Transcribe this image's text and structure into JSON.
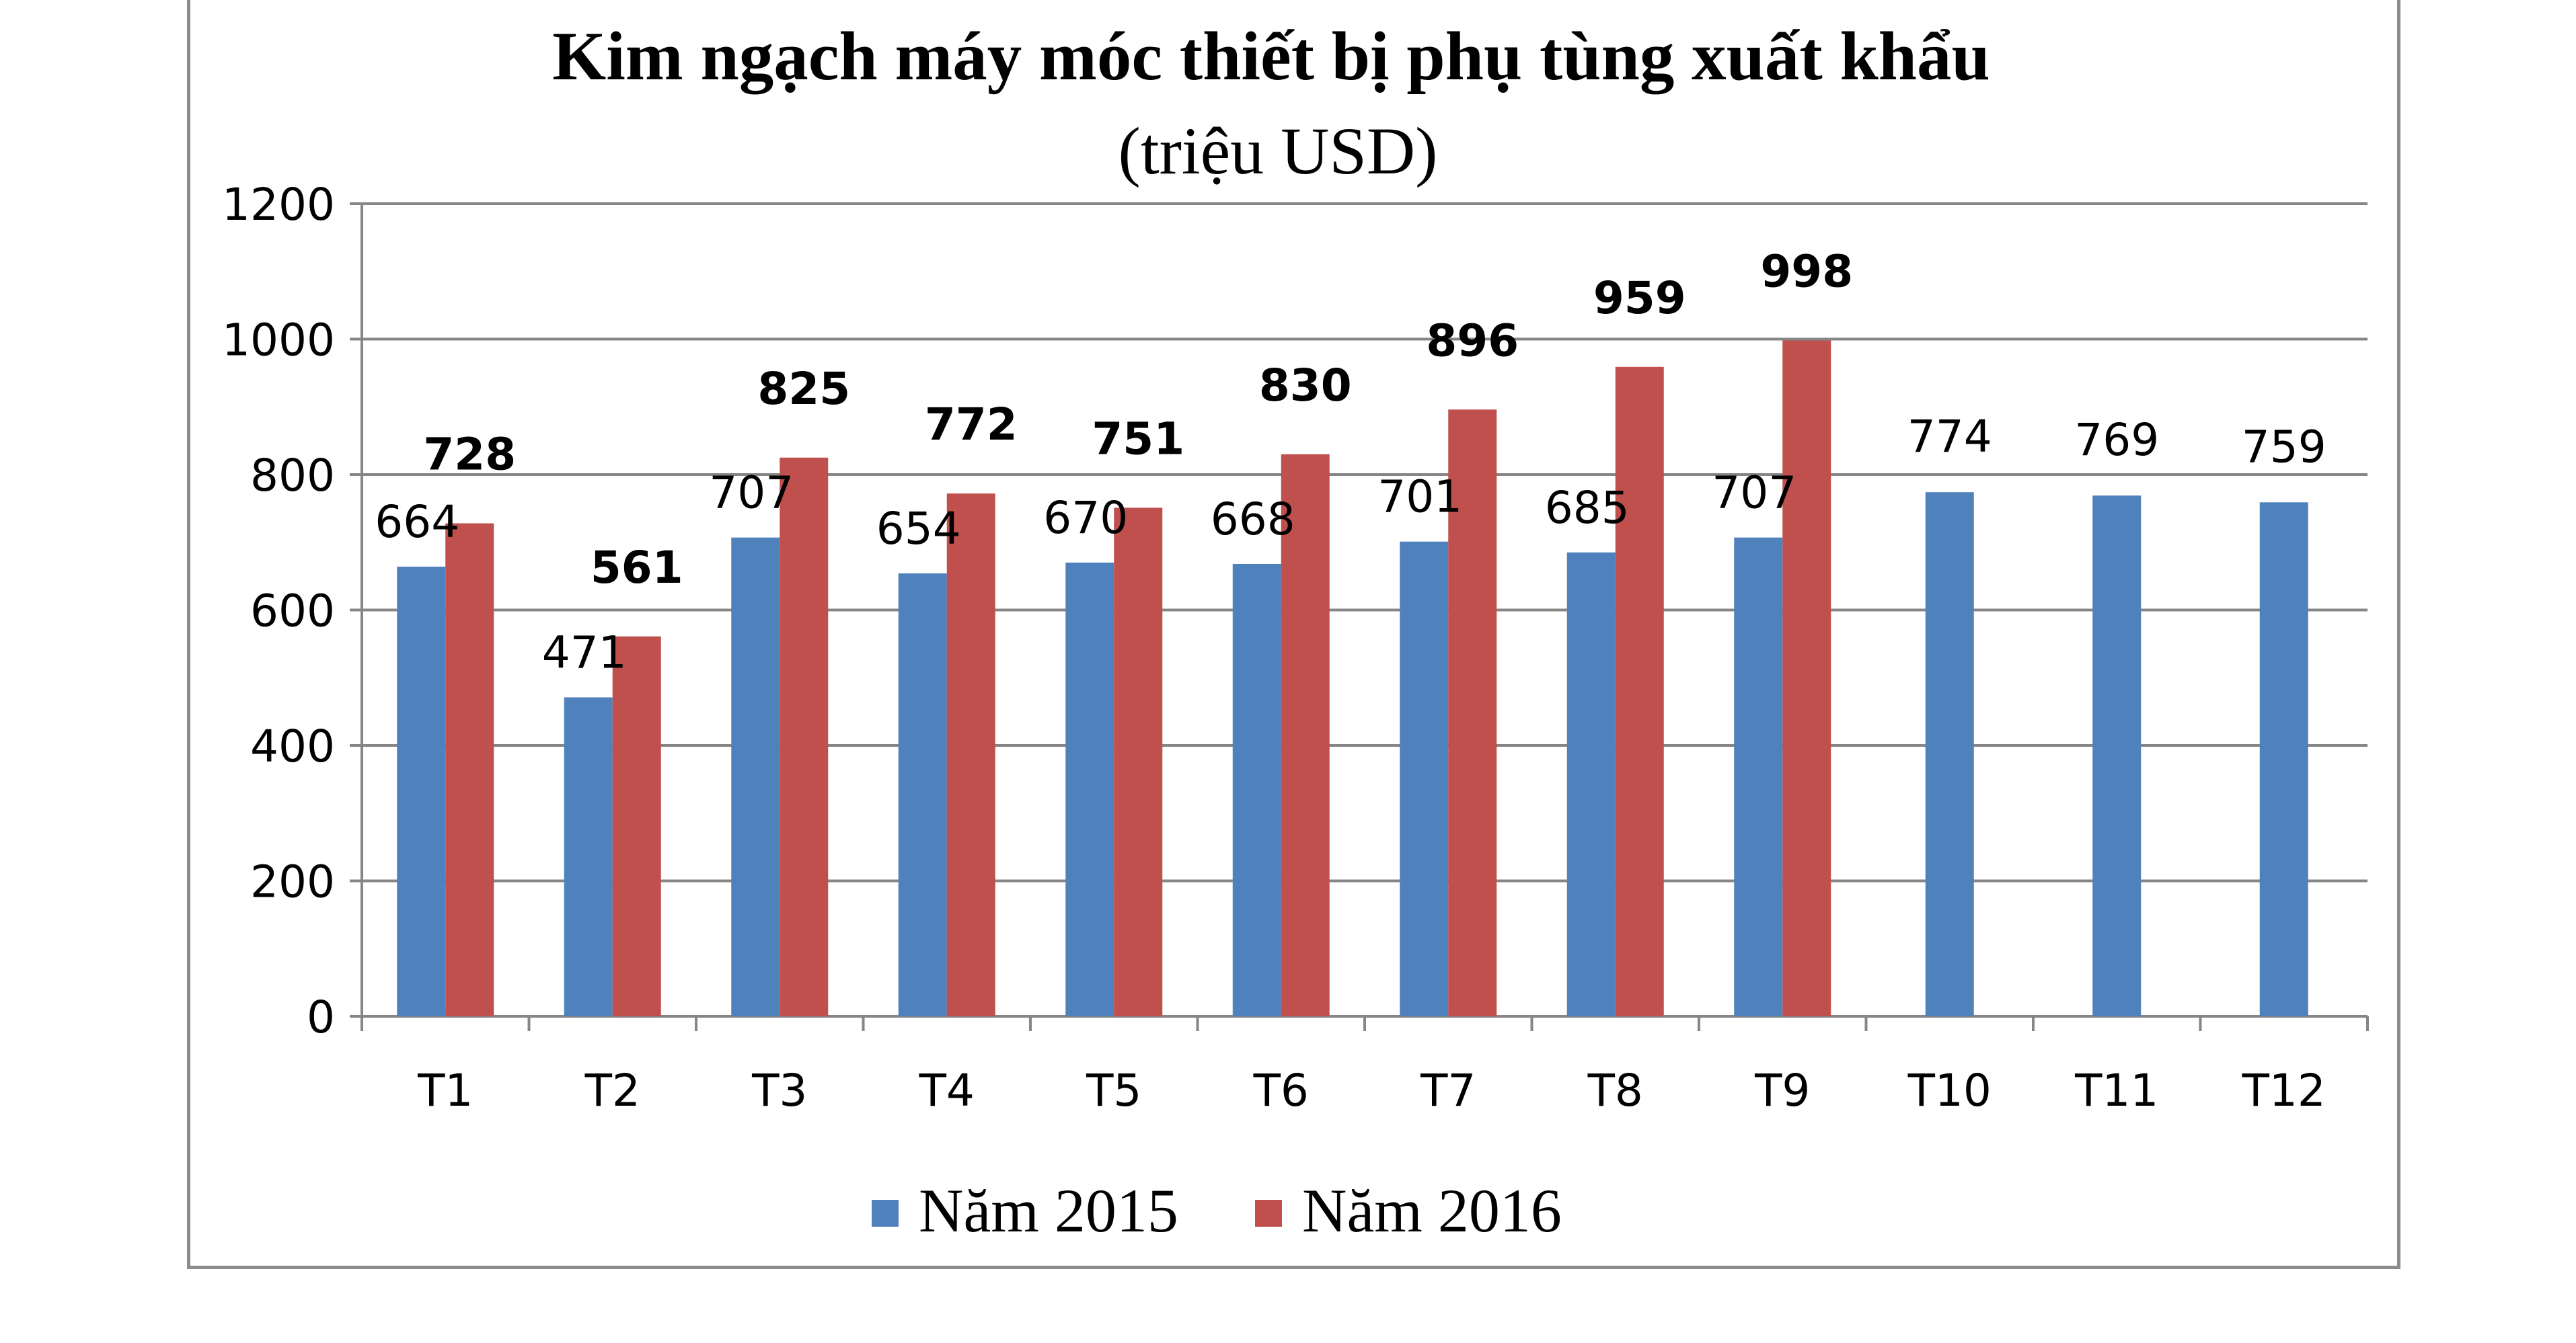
{
  "chart_data": {
    "type": "bar",
    "title": "Kim ngạch máy móc thiết bị phụ tùng xuất khẩu",
    "subtitle": "(triệu USD)",
    "categories": [
      "T1",
      "T2",
      "T3",
      "T4",
      "T5",
      "T6",
      "T7",
      "T8",
      "T9",
      "T10",
      "T11",
      "T12"
    ],
    "series": [
      {
        "name": "Năm 2015",
        "color": "#4f81bd",
        "values": [
          664,
          471,
          707,
          654,
          670,
          668,
          701,
          685,
          707,
          774,
          769,
          759
        ]
      },
      {
        "name": "Năm 2016",
        "color": "#c0504d",
        "values": [
          728,
          561,
          825,
          772,
          751,
          830,
          896,
          959,
          998,
          null,
          null,
          null
        ]
      }
    ],
    "yticks": [
      "0",
      "200",
      "400",
      "600",
      "800",
      "1000",
      "1200"
    ],
    "ylim": [
      0,
      1200
    ],
    "grid": true,
    "legend_position": "bottom"
  }
}
